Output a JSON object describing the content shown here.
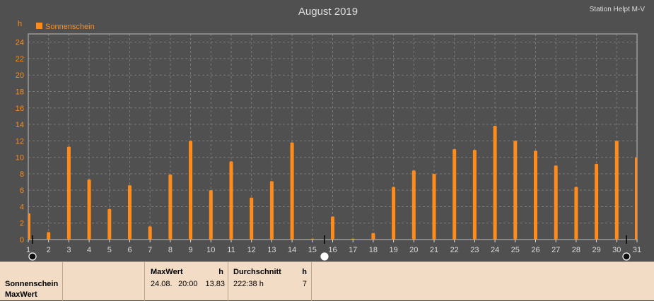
{
  "header": {
    "title": "August 2019",
    "station": "Station Helpt M-V"
  },
  "chart_data": {
    "type": "bar",
    "title": "August 2019",
    "ylabel": "h",
    "xlabel": "",
    "ylim": [
      0,
      25
    ],
    "yticks": [
      0,
      2,
      4,
      6,
      8,
      10,
      12,
      14,
      16,
      18,
      20,
      22,
      24
    ],
    "grid": true,
    "legend_position": "top-left",
    "categories": [
      "1",
      "2",
      "3",
      "4",
      "5",
      "6",
      "7",
      "8",
      "9",
      "10",
      "11",
      "12",
      "13",
      "14",
      "15",
      "16",
      "17",
      "18",
      "19",
      "20",
      "21",
      "22",
      "23",
      "24",
      "25",
      "26",
      "27",
      "28",
      "29",
      "30",
      "31"
    ],
    "series": [
      {
        "name": "Sonnenschein",
        "color": "#ff8c1a",
        "values": [
          3.2,
          0.9,
          11.3,
          7.3,
          3.7,
          6.6,
          1.6,
          7.9,
          12.0,
          6.0,
          9.5,
          5.1,
          7.1,
          11.8,
          0.1,
          2.8,
          0.1,
          0.8,
          6.4,
          8.4,
          8.0,
          11.0,
          10.9,
          13.83,
          12.0,
          10.8,
          9.0,
          6.4,
          9.2,
          12.0,
          10.0
        ]
      }
    ]
  },
  "stats": {
    "row_labels": [
      "Sonnenschein",
      "MaxWert"
    ],
    "maxwert": {
      "header": "MaxWert",
      "unit": "h",
      "date": "24.08.",
      "time": "20:00",
      "value": "13.83"
    },
    "durchschnitt": {
      "header": "Durchschnitt",
      "unit": "h",
      "value": "222:38 h",
      "count": "7"
    }
  }
}
